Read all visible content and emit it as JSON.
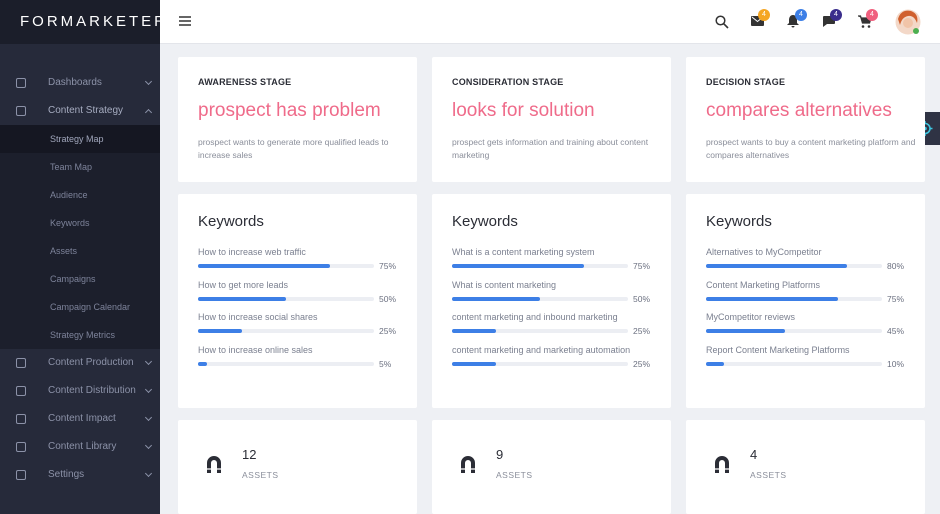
{
  "sidebar": {
    "logo": "FORMARKETER",
    "menu": [
      {
        "label": "Dashboards"
      },
      {
        "label": "Content Strategy",
        "submenu": [
          "Strategy Map",
          "Team Map",
          "Audience",
          "Keywords",
          "Assets",
          "Campaigns",
          "Campaign Calendar",
          "Strategy Metrics"
        ]
      },
      {
        "label": "Content Production"
      },
      {
        "label": "Content Distribution"
      },
      {
        "label": "Content Impact"
      },
      {
        "label": "Content Library"
      },
      {
        "label": "Settings"
      }
    ]
  },
  "topbar": {
    "badges": [
      4,
      4,
      4,
      4
    ]
  },
  "stages": [
    {
      "title": "AWARENESS STAGE",
      "headline": "prospect has problem",
      "description": "prospect wants to generate more qualified leads to increase sales"
    },
    {
      "title": "CONSIDERATION STAGE",
      "headline": "looks for solution",
      "description": "prospect gets information and training about content marketing"
    },
    {
      "title": "DECISION STAGE",
      "headline": "compares alternatives",
      "description": "prospect wants to buy a content marketing platform and compares alternatives"
    }
  ],
  "keywords": [
    {
      "title": "Keywords",
      "items": [
        {
          "text": "How to increase web traffic",
          "value": 75,
          "label": "75%"
        },
        {
          "text": "How to get more leads",
          "value": 50,
          "label": "50%"
        },
        {
          "text": "How to increase social shares",
          "value": 25,
          "label": "25%"
        },
        {
          "text": "How to increase online sales",
          "value": 5,
          "label": "5%"
        }
      ]
    },
    {
      "title": "Keywords",
      "items": [
        {
          "text": "What is a content marketing system",
          "value": 75,
          "label": "75%"
        },
        {
          "text": "What is content marketing",
          "value": 50,
          "label": "50%"
        },
        {
          "text": "content marketing and inbound marketing",
          "value": 25,
          "label": "25%"
        },
        {
          "text": "content marketing and marketing automation",
          "value": 25,
          "label": "25%"
        }
      ]
    },
    {
      "title": "Keywords",
      "items": [
        {
          "text": "Alternatives to MyCompetitor",
          "value": 80,
          "label": "80%"
        },
        {
          "text": "Content Marketing Platforms",
          "value": 75,
          "label": "75%"
        },
        {
          "text": "MyCompetitor reviews",
          "value": 45,
          "label": "45%"
        },
        {
          "text": "Report Content Marketing Platforms",
          "value": 10,
          "label": "10%"
        }
      ]
    }
  ],
  "assets": [
    {
      "count": 12,
      "label": "ASSETS"
    },
    {
      "count": 9,
      "label": "ASSETS"
    },
    {
      "count": 4,
      "label": "ASSETS"
    }
  ]
}
